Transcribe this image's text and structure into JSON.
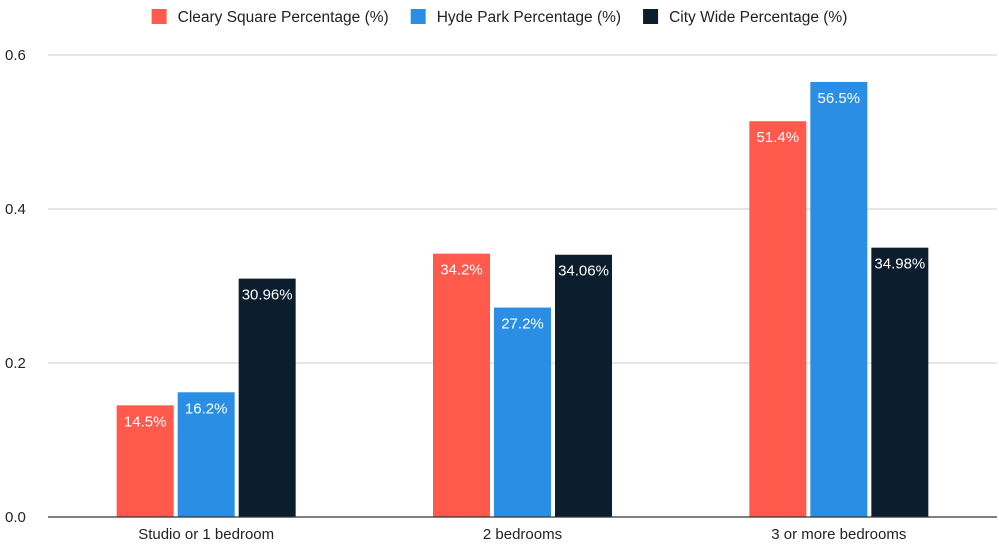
{
  "chart_data": {
    "type": "bar",
    "categories": [
      "Studio or 1 bedroom",
      "2 bedrooms",
      "3 or more bedrooms"
    ],
    "series": [
      {
        "name": "Cleary Square Percentage (%)",
        "values": [
          0.145,
          0.342,
          0.514
        ],
        "labels": [
          "14.5%",
          "34.2%",
          "51.4%"
        ],
        "color": "#ff5a4c"
      },
      {
        "name": "Hyde Park Percentage (%)",
        "values": [
          0.162,
          0.272,
          0.565
        ],
        "labels": [
          "16.2%",
          "27.2%",
          "56.5%"
        ],
        "color": "#2a8fe4"
      },
      {
        "name": "City Wide Percentage (%)",
        "values": [
          0.3096,
          0.3406,
          0.3498
        ],
        "labels": [
          "30.96%",
          "34.06%",
          "34.98%"
        ],
        "color": "#0c1e2e"
      }
    ],
    "ylim": [
      0,
      0.6
    ],
    "yticks": [
      "0.0",
      "0.2",
      "0.4",
      "0.6"
    ],
    "ytick_values": [
      0,
      0.2,
      0.4,
      0.6
    ],
    "grid": true,
    "legend_position": "top",
    "title": "",
    "xlabel": "",
    "ylabel": ""
  }
}
